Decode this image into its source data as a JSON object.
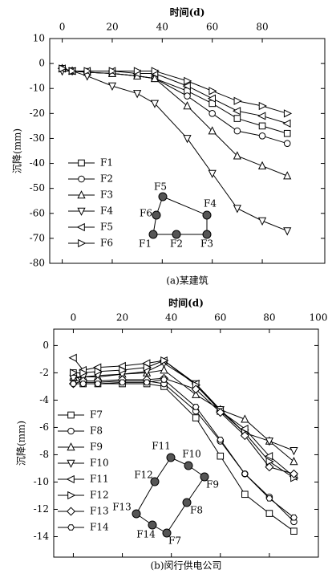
{
  "chart_data": [
    {
      "type": "line",
      "title": "(a)某建筑",
      "x_label": "时间(d)",
      "y_label": "沉降(mm)",
      "x": [
        0,
        4,
        10,
        20,
        30,
        37,
        50,
        60,
        70,
        80,
        90
      ],
      "xlim": [
        -5,
        105
      ],
      "ylim": [
        -80,
        10
      ],
      "xticks": [
        0,
        20,
        40,
        60,
        80
      ],
      "yticks": [
        -80,
        -70,
        -60,
        -50,
        -40,
        -30,
        -20,
        -10,
        0,
        10
      ],
      "series": [
        {
          "name": "F1",
          "color": "#000000",
          "marker": "square",
          "values": [
            -2,
            -3,
            -3.5,
            -4,
            -5,
            -6,
            -11,
            -16,
            -22,
            -25,
            -28
          ]
        },
        {
          "name": "F2",
          "color": "#000000",
          "marker": "circle",
          "values": [
            -2,
            -3,
            -3.5,
            -4,
            -5,
            -6,
            -13,
            -20,
            -27,
            -29,
            -32
          ]
        },
        {
          "name": "F3",
          "color": "#000000",
          "marker": "up",
          "values": [
            -2,
            -3,
            -3.5,
            -4,
            -5,
            -6,
            -17,
            -27,
            -37,
            -41,
            -45
          ]
        },
        {
          "name": "F4",
          "color": "#000000",
          "marker": "down",
          "values": [
            -3,
            -3,
            -5,
            -9,
            -12,
            -16,
            -30,
            -44,
            -58,
            -63,
            -67
          ]
        },
        {
          "name": "F5",
          "color": "#000000",
          "marker": "left",
          "values": [
            -2,
            -3,
            -3,
            -3,
            -4,
            -4,
            -9,
            -14,
            -19,
            -21,
            -24
          ]
        },
        {
          "name": "F6",
          "color": "#000000",
          "marker": "right",
          "values": [
            -2,
            -3,
            -3,
            -3,
            -3,
            -3,
            -7,
            -11,
            -15,
            -17,
            -20
          ]
        }
      ],
      "inset_labels": [
        "F1",
        "F2",
        "F3",
        "F4",
        "F5",
        "F6"
      ]
    },
    {
      "type": "line",
      "title": "(b)闵行供电公司",
      "x_label": "时间(d)",
      "y_label": "沉降(mm)",
      "x": [
        0,
        4,
        10,
        20,
        30,
        37,
        50,
        60,
        70,
        80,
        90
      ],
      "xlim": [
        -8,
        100
      ],
      "ylim": [
        -15.5,
        1.2
      ],
      "xticks": [
        0,
        20,
        40,
        60,
        80,
        100
      ],
      "yticks": [
        -14,
        -12,
        -10,
        -8,
        -6,
        -4,
        -2,
        0
      ],
      "series": [
        {
          "name": "F7",
          "color": "#000000",
          "marker": "square",
          "values": [
            -2,
            -2.8,
            -2.8,
            -2.8,
            -2.8,
            -3,
            -5.3,
            -8.1,
            -10.9,
            -12.3,
            -13.6
          ]
        },
        {
          "name": "F8",
          "color": "#000000",
          "marker": "circle",
          "values": [
            -2.5,
            -2.7,
            -2.7,
            -2.6,
            -2.6,
            -2.8,
            -4.8,
            -7,
            -9.4,
            -11.1,
            -12.9
          ]
        },
        {
          "name": "F9",
          "color": "#000000",
          "marker": "up",
          "values": [
            -2.3,
            -2.3,
            -2.3,
            -2.1,
            -2,
            -1.8,
            -3.6,
            -4.7,
            -5.4,
            -7,
            -8.5
          ]
        },
        {
          "name": "F10",
          "color": "#000000",
          "marker": "down",
          "values": [
            -2.4,
            -2.3,
            -2.2,
            -2.1,
            -1.9,
            -1.3,
            -2.8,
            -4.7,
            -6.4,
            -7,
            -7.7
          ]
        },
        {
          "name": "F11",
          "color": "#000000",
          "marker": "left",
          "values": [
            -0.9,
            -1.8,
            -1.6,
            -1.5,
            -1.3,
            -1.1,
            -2.8,
            -4.8,
            -6.1,
            -8.1,
            -9.6
          ]
        },
        {
          "name": "F12",
          "color": "#000000",
          "marker": "right",
          "values": [
            -2,
            -2,
            -1.9,
            -1.8,
            -1.6,
            -1.1,
            -2.9,
            -4.8,
            -6.4,
            -8.5,
            -9.7
          ]
        },
        {
          "name": "F13",
          "color": "#000000",
          "marker": "diamond",
          "values": [
            -2.8,
            -2.6,
            -2.6,
            -2.5,
            -2.5,
            -2.4,
            -3.2,
            -4.9,
            -6.6,
            -8.9,
            -9.4
          ]
        },
        {
          "name": "F14",
          "color": "#000000",
          "marker": "hexagon",
          "values": [
            -2.8,
            -2.8,
            -2.8,
            -2.7,
            -2.7,
            -2.5,
            -4.5,
            -6.9,
            -9.4,
            -11.2,
            -12.6
          ]
        }
      ],
      "inset_labels": [
        "F7",
        "F8",
        "F9",
        "F10",
        "F11",
        "F12",
        "F13",
        "F14"
      ]
    }
  ]
}
